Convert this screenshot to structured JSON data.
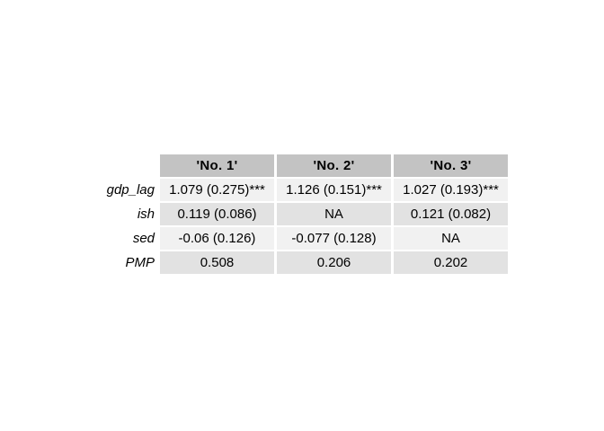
{
  "chart_data": {
    "type": "table",
    "title": "",
    "columns": [
      "'No. 1'",
      "'No. 2'",
      "'No. 3'"
    ],
    "row_labels": [
      "gdp_lag",
      "ish",
      "sed",
      "PMP"
    ],
    "rows": [
      [
        "1.079 (0.275)***",
        "1.126 (0.151)***",
        "1.027 (0.193)***"
      ],
      [
        "0.119 (0.086)",
        "NA",
        "0.121 (0.082)"
      ],
      [
        "-0.06 (0.126)",
        "-0.077 (0.128)",
        "NA"
      ],
      [
        "0.508",
        "0.206",
        "0.202"
      ]
    ],
    "layout": {
      "header_style": "bold, centered, gray fill",
      "row_label_style": "italic, right-aligned, no fill",
      "value_alignment": "center",
      "row_banding": "alternating light/dark gray with white separators"
    },
    "colors": {
      "canvas_bg": "#ffffff",
      "header_bg": "#c3c3c3",
      "row_odd_bg": "#f1f1f1",
      "row_even_bg": "#e2e2e2",
      "text": "#000000",
      "separator": "#ffffff"
    }
  }
}
